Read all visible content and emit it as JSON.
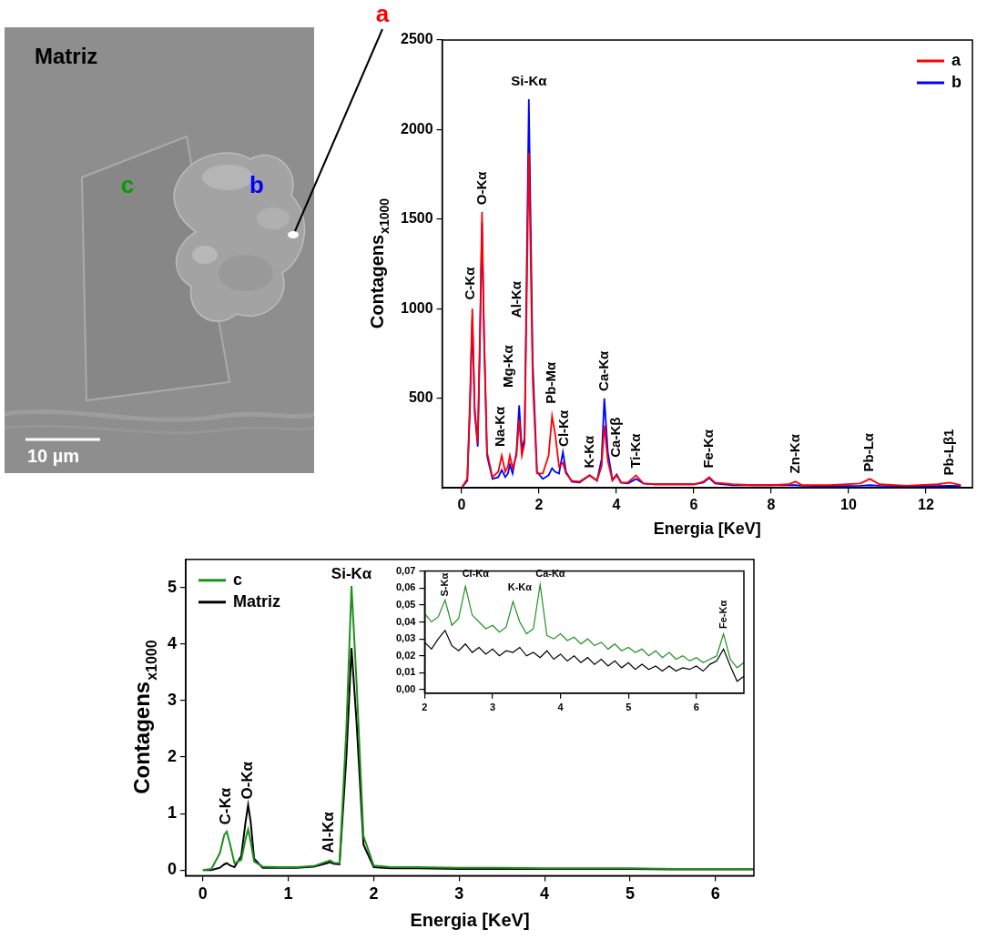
{
  "image": {
    "label": "Matriz",
    "points": [
      {
        "text": "a",
        "color": "#ff0000"
      },
      {
        "text": "b",
        "color": "#0000ff"
      },
      {
        "text": "c",
        "color": "#00a000"
      }
    ],
    "scale_bar": "10 µm"
  },
  "chart_data": [
    {
      "type": "line",
      "xlabel": "Energia [KeV]",
      "ylabel": "Contagens",
      "ylabel_subscript": "x1000",
      "x": [
        0,
        0.15,
        0.22,
        0.28,
        0.34,
        0.42,
        0.48,
        0.53,
        0.58,
        0.66,
        0.8,
        0.95,
        1.04,
        1.13,
        1.2,
        1.25,
        1.32,
        1.42,
        1.49,
        1.56,
        1.63,
        1.74,
        1.84,
        1.95,
        2.1,
        2.25,
        2.34,
        2.42,
        2.52,
        2.62,
        2.7,
        2.85,
        3.05,
        3.31,
        3.5,
        3.62,
        3.69,
        3.78,
        3.9,
        4.01,
        4.12,
        4.3,
        4.51,
        4.7,
        5.0,
        5.5,
        6.0,
        6.25,
        6.4,
        6.55,
        7.0,
        7.5,
        8.0,
        8.45,
        8.63,
        8.8,
        9.5,
        10.3,
        10.55,
        10.8,
        11.5,
        12.3,
        12.61,
        12.9
      ],
      "series": [
        {
          "name": "a",
          "color": "#ff0000",
          "values": [
            0,
            50,
            500,
            1000,
            450,
            250,
            900,
            1540,
            900,
            200,
            60,
            90,
            180,
            90,
            120,
            180,
            110,
            180,
            380,
            180,
            250,
            1870,
            600,
            80,
            80,
            180,
            400,
            300,
            120,
            140,
            80,
            40,
            35,
            70,
            40,
            120,
            350,
            150,
            40,
            70,
            30,
            30,
            70,
            25,
            20,
            20,
            20,
            35,
            60,
            30,
            20,
            15,
            15,
            20,
            35,
            15,
            15,
            25,
            50,
            20,
            12,
            20,
            30,
            15
          ]
        },
        {
          "name": "b",
          "color": "#0000ff",
          "values": [
            0,
            40,
            450,
            950,
            420,
            230,
            850,
            1480,
            860,
            180,
            50,
            60,
            100,
            60,
            80,
            130,
            80,
            200,
            460,
            210,
            280,
            2170,
            700,
            90,
            50,
            70,
            110,
            90,
            80,
            200,
            90,
            35,
            30,
            70,
            40,
            160,
            500,
            200,
            45,
            75,
            30,
            25,
            50,
            25,
            20,
            20,
            20,
            30,
            55,
            25,
            15,
            15,
            15,
            15,
            15,
            12,
            10,
            12,
            15,
            12,
            10,
            10,
            12,
            10
          ]
        }
      ],
      "xlim": [
        -0.5,
        13.2
      ],
      "xticks": [
        0,
        2,
        4,
        6,
        8,
        10,
        12
      ],
      "ylim": [
        0,
        2500
      ],
      "yticks": [
        500,
        1000,
        1500,
        2000,
        2500
      ],
      "grid": false,
      "legend": "upper right",
      "annotations": [
        {
          "text": "Si-Kα",
          "x": 1.74,
          "y": 2230
        }
      ],
      "peak_labels": [
        {
          "text": "C-Kα",
          "x": 0.24,
          "y": 1050
        },
        {
          "text": "O-Kα",
          "x": 0.53,
          "y": 1580
        },
        {
          "text": "Na-Kα",
          "x": 1.02,
          "y": 230
        },
        {
          "text": "Mg-Kα",
          "x": 1.22,
          "y": 560
        },
        {
          "text": "Al-Kα",
          "x": 1.44,
          "y": 950
        },
        {
          "text": "Pb-Mα",
          "x": 2.34,
          "y": 470
        },
        {
          "text": "Cl-Kα",
          "x": 2.66,
          "y": 230
        },
        {
          "text": "K-Kα",
          "x": 3.31,
          "y": 110
        },
        {
          "text": "Ca-Kα",
          "x": 3.69,
          "y": 540
        },
        {
          "text": "Ca-Kβ",
          "x": 4.01,
          "y": 170
        },
        {
          "text": "Ti-Kα",
          "x": 4.51,
          "y": 110
        },
        {
          "text": "Fe-Kα",
          "x": 6.4,
          "y": 110
        },
        {
          "text": "Zn-Kα",
          "x": 8.63,
          "y": 80
        },
        {
          "text": "Pb-Lα",
          "x": 10.55,
          "y": 90
        },
        {
          "text": "Pb-Lβ1",
          "x": 12.61,
          "y": 70
        }
      ]
    },
    {
      "type": "line",
      "xlabel": "Energia [KeV]",
      "ylabel": "Contagens",
      "ylabel_subscript": "x1000",
      "x": [
        0,
        0.1,
        0.2,
        0.25,
        0.28,
        0.32,
        0.37,
        0.45,
        0.5,
        0.53,
        0.56,
        0.6,
        0.7,
        0.9,
        1.1,
        1.3,
        1.45,
        1.49,
        1.53,
        1.6,
        1.68,
        1.74,
        1.8,
        1.88,
        2.0,
        2.2,
        2.5,
        3.0,
        3.5,
        4.0,
        4.5,
        5.0,
        5.5,
        6.0,
        6.45
      ],
      "series": [
        {
          "name": "c",
          "color": "#1f8f1f",
          "values": [
            0.0,
            0.02,
            0.3,
            0.62,
            0.68,
            0.45,
            0.12,
            0.18,
            0.55,
            0.72,
            0.5,
            0.15,
            0.06,
            0.05,
            0.05,
            0.07,
            0.15,
            0.17,
            0.13,
            0.12,
            2.5,
            5.03,
            3.3,
            0.6,
            0.08,
            0.05,
            0.05,
            0.04,
            0.04,
            0.03,
            0.03,
            0.03,
            0.02,
            0.02,
            0.02
          ]
        },
        {
          "name": "Matriz",
          "color": "#000000",
          "values": [
            0.0,
            0.0,
            0.04,
            0.1,
            0.12,
            0.08,
            0.05,
            0.25,
            0.85,
            1.15,
            0.85,
            0.2,
            0.04,
            0.04,
            0.04,
            0.06,
            0.12,
            0.14,
            0.11,
            0.1,
            2.0,
            3.93,
            2.6,
            0.45,
            0.05,
            0.03,
            0.03,
            0.02,
            0.02,
            0.02,
            0.02,
            0.02,
            0.01,
            0.01,
            0.01
          ]
        }
      ],
      "xlim": [
        -0.2,
        6.45
      ],
      "xticks": [
        0,
        1,
        2,
        3,
        4,
        5,
        6
      ],
      "ylim": [
        -0.1,
        5.5
      ],
      "yticks": [
        0,
        1,
        2,
        3,
        4,
        5
      ],
      "grid": false,
      "legend": "upper left",
      "annotations": [
        {
          "text": "Si-Kα",
          "x": 1.74,
          "y": 5.1
        }
      ],
      "peak_labels": [
        {
          "text": "C-Kα",
          "x": 0.27,
          "y": 0.8
        },
        {
          "text": "O-Kα",
          "x": 0.53,
          "y": 1.25
        },
        {
          "text": "Al-Kα",
          "x": 1.48,
          "y": 0.3
        }
      ]
    },
    {
      "type": "line",
      "x": [
        2.0,
        2.1,
        2.2,
        2.3,
        2.4,
        2.5,
        2.6,
        2.7,
        2.8,
        2.9,
        3.0,
        3.1,
        3.2,
        3.3,
        3.4,
        3.5,
        3.6,
        3.7,
        3.8,
        3.9,
        4.0,
        4.1,
        4.2,
        4.3,
        4.4,
        4.5,
        4.6,
        4.7,
        4.8,
        4.9,
        5.0,
        5.1,
        5.2,
        5.3,
        5.4,
        5.5,
        5.6,
        5.7,
        5.8,
        5.9,
        6.0,
        6.1,
        6.2,
        6.3,
        6.4,
        6.5,
        6.6,
        6.7
      ],
      "series": [
        {
          "name": "c",
          "color": "#1f8f1f",
          "values": [
            0.045,
            0.04,
            0.043,
            0.053,
            0.038,
            0.042,
            0.061,
            0.044,
            0.04,
            0.036,
            0.038,
            0.034,
            0.037,
            0.052,
            0.04,
            0.033,
            0.036,
            0.062,
            0.032,
            0.03,
            0.033,
            0.029,
            0.031,
            0.027,
            0.03,
            0.026,
            0.028,
            0.024,
            0.027,
            0.023,
            0.025,
            0.022,
            0.024,
            0.02,
            0.023,
            0.019,
            0.022,
            0.018,
            0.02,
            0.017,
            0.019,
            0.016,
            0.018,
            0.02,
            0.033,
            0.018,
            0.013,
            0.016
          ]
        },
        {
          "name": "Matriz",
          "color": "#000000",
          "values": [
            0.028,
            0.024,
            0.03,
            0.035,
            0.026,
            0.023,
            0.027,
            0.022,
            0.025,
            0.021,
            0.024,
            0.02,
            0.023,
            0.022,
            0.025,
            0.02,
            0.022,
            0.019,
            0.023,
            0.018,
            0.021,
            0.017,
            0.02,
            0.016,
            0.019,
            0.015,
            0.018,
            0.014,
            0.017,
            0.013,
            0.016,
            0.012,
            0.015,
            0.012,
            0.014,
            0.011,
            0.014,
            0.011,
            0.013,
            0.012,
            0.014,
            0.011,
            0.015,
            0.017,
            0.024,
            0.014,
            0.005,
            0.008
          ]
        }
      ],
      "xlim": [
        2,
        6.7
      ],
      "xticks": [
        2,
        3,
        4,
        5,
        6
      ],
      "ylim": [
        -0.002,
        0.07
      ],
      "yticks": [
        {
          "value": 0,
          "label": "0,00"
        },
        {
          "value": 0.01,
          "label": "0,01"
        },
        {
          "value": 0.02,
          "label": "0,02"
        },
        {
          "value": 0.03,
          "label": "0,03"
        },
        {
          "value": 0.04,
          "label": "0,04"
        },
        {
          "value": 0.05,
          "label": "0,05"
        },
        {
          "value": 0.06,
          "label": "0,06"
        },
        {
          "value": 0.07,
          "label": "0,07"
        }
      ],
      "grid": false,
      "annotations": [
        {
          "text": "Cl-Kα",
          "x": 2.75,
          "y": 0.065
        },
        {
          "text": "K-Kα",
          "x": 3.4,
          "y": 0.057
        },
        {
          "text": "Ca-Kα",
          "x": 3.85,
          "y": 0.065
        }
      ],
      "peak_labels": [
        {
          "text": "S-Kα",
          "x": 2.3,
          "y": 0.055
        },
        {
          "text": "Fe-Kα",
          "x": 6.4,
          "y": 0.036
        }
      ]
    }
  ]
}
